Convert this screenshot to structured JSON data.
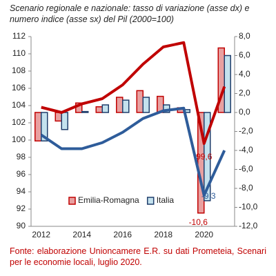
{
  "chart_data": {
    "type": "bar",
    "title": "Scenario regionale e nazionale: tasso di variazione (asse dx) e numero indice (asse sx) del Pil (2000=100)",
    "note": "Fonte: elaborazione Unioncamere E.R. su dati Prometeia, Scenari per le economie locali, luglio 2020.",
    "categories": [
      "2012",
      null,
      "2014",
      null,
      "2016",
      null,
      "2018",
      null,
      "2020",
      null
    ],
    "ylim": [
      90,
      112
    ],
    "yticks": [
      90,
      92,
      94,
      96,
      98,
      100,
      102,
      104,
      106,
      108,
      110,
      112
    ],
    "y2lim": [
      -12,
      8
    ],
    "y2ticks": [
      {
        "value": -12,
        "label": "-12,0"
      },
      {
        "value": -10,
        "label": "-10,0"
      },
      {
        "value": -8,
        "label": "-8,0"
      },
      {
        "value": -6,
        "label": "-6,0"
      },
      {
        "value": -4,
        "label": "-4,0"
      },
      {
        "value": -2,
        "label": "-2,0"
      },
      {
        "value": 0,
        "label": "0,0"
      },
      {
        "value": 2,
        "label": "2,0"
      },
      {
        "value": 4,
        "label": "4,0"
      },
      {
        "value": 6,
        "label": "6,0"
      },
      {
        "value": 8,
        "label": "8,0"
      }
    ],
    "legend": "lower center",
    "series": [
      {
        "name": "Emilia-Romagna",
        "type": "bar",
        "axis": "y2",
        "color": "#e8a0a0",
        "edge": "#c00000",
        "values": [
          -3.0,
          -0.9,
          1.0,
          0.6,
          1.6,
          2.3,
          1.7,
          0.5,
          -10.6,
          6.8
        ],
        "value_labels": [
          null,
          null,
          null,
          null,
          null,
          null,
          null,
          null,
          "-10,6",
          null
        ]
      },
      {
        "name": "Italia",
        "type": "bar",
        "axis": "y2",
        "color": "#c4e2ee",
        "edge": "#1f3d6b",
        "values": [
          -3.0,
          -1.8,
          0.1,
          0.8,
          1.3,
          1.6,
          0.8,
          0.3,
          -9.3,
          6.0
        ],
        "value_labels": [
          null,
          null,
          null,
          null,
          null,
          null,
          null,
          null,
          "-9,3",
          null
        ]
      },
      {
        "type": "line",
        "color": "#c00000",
        "values": [
          103.8,
          103.2,
          104.2,
          104.8,
          106.4,
          108.8,
          110.8,
          111.3,
          99.6,
          106.2
        ],
        "value_labels": [
          null,
          null,
          null,
          null,
          null,
          null,
          null,
          null,
          "99,6",
          null
        ]
      },
      {
        "type": "line",
        "color": "#2e5c9a",
        "values": [
          100.6,
          99.0,
          99.0,
          99.7,
          100.9,
          102.5,
          103.4,
          103.7,
          93.6,
          98.8
        ]
      }
    ]
  }
}
